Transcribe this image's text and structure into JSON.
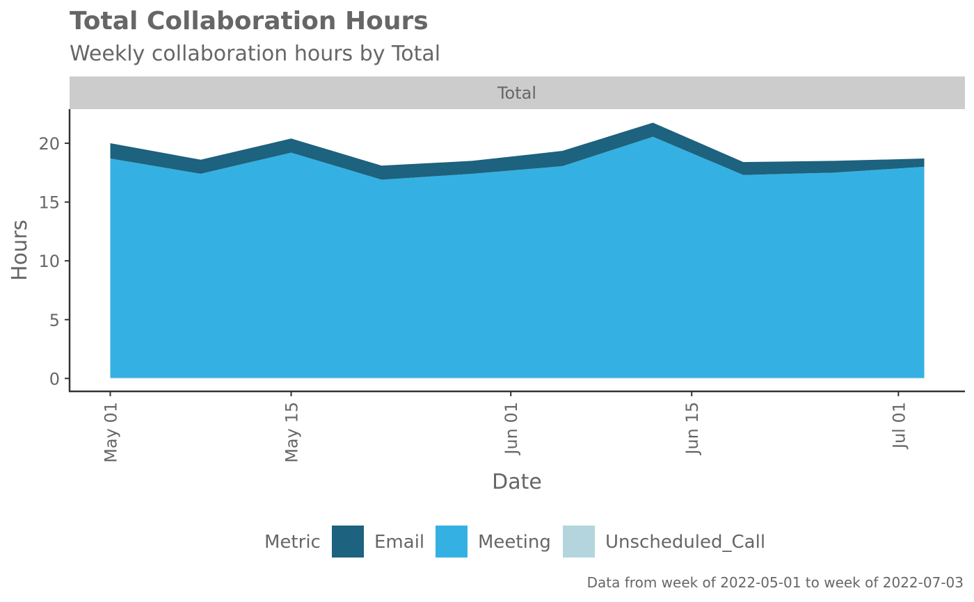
{
  "chart_data": {
    "type": "area",
    "stacked": true,
    "title": "Total Collaboration Hours",
    "subtitle": "Weekly collaboration hours by Total",
    "facet_label": "Total",
    "xlabel": "Date",
    "ylabel": "Hours",
    "x": [
      "2022-05-01",
      "2022-05-08",
      "2022-05-15",
      "2022-05-22",
      "2022-05-29",
      "2022-06-05",
      "2022-06-12",
      "2022-06-19",
      "2022-06-26",
      "2022-07-03"
    ],
    "x_ticks": [
      {
        "date": "2022-05-01",
        "label": "May 01"
      },
      {
        "date": "2022-05-15",
        "label": "May 15"
      },
      {
        "date": "2022-06-01",
        "label": "Jun 01"
      },
      {
        "date": "2022-06-15",
        "label": "Jun 15"
      },
      {
        "date": "2022-07-01",
        "label": "Jul 01"
      }
    ],
    "y_ticks": [
      0,
      5,
      10,
      15,
      20
    ],
    "ylim": [
      -1.1,
      22.9
    ],
    "series": [
      {
        "name": "Unscheduled_Call",
        "color": "#b4d5dd",
        "values": [
          0.05,
          0.05,
          0.05,
          0.05,
          0.05,
          0.05,
          0.05,
          0.05,
          0.05,
          0.05
        ]
      },
      {
        "name": "Meeting",
        "color": "#34b1e2",
        "values": [
          18.65,
          17.35,
          19.15,
          16.85,
          17.35,
          18.0,
          20.5,
          17.25,
          17.45,
          17.95
        ]
      },
      {
        "name": "Email",
        "color": "#1d627e",
        "values": [
          1.3,
          1.2,
          1.2,
          1.2,
          1.1,
          1.3,
          1.2,
          1.1,
          1.0,
          0.7
        ]
      }
    ],
    "legend": {
      "title": "Metric",
      "position": "bottom",
      "items": [
        {
          "label": "Email",
          "color": "#1d627e"
        },
        {
          "label": "Meeting",
          "color": "#34b1e2"
        },
        {
          "label": "Unscheduled_Call",
          "color": "#b4d5dd"
        }
      ]
    },
    "caption": "Data from week of 2022-05-01 to week of 2022-07-03",
    "grid": false
  }
}
